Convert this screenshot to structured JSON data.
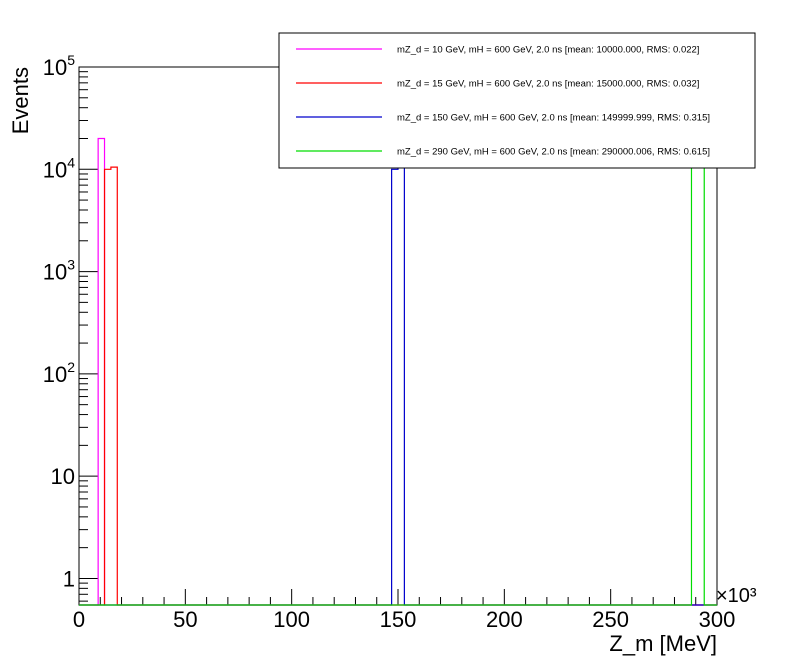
{
  "chart_data": {
    "type": "histogram",
    "xlabel": "Z_m [MeV]",
    "ylabel": "Events",
    "x_multiplier": "×10³",
    "xlim": [
      0,
      300
    ],
    "ylim": [
      0.55,
      100000
    ],
    "y_scale": "log",
    "x_ticks": [
      "0",
      "50",
      "100",
      "150",
      "200",
      "250",
      "300"
    ],
    "y_ticks": [
      {
        "value": 1,
        "base": "1",
        "exp": ""
      },
      {
        "value": 10,
        "base": "10",
        "exp": ""
      },
      {
        "value": 100,
        "base": "10",
        "exp": "2"
      },
      {
        "value": 1000,
        "base": "10",
        "exp": "3"
      },
      {
        "value": 10000,
        "base": "10",
        "exp": "4"
      },
      {
        "value": 100000,
        "base": "10",
        "exp": "5"
      }
    ],
    "legend_position": "top-right",
    "series": [
      {
        "name": "mZ_d = 10 GeV, mH = 600 GeV, 2.0 ns [mean: 10000.000, RMS: 0.022]",
        "color": "#ff00ff",
        "bins": [
          {
            "x0": 9,
            "x1": 12,
            "y": 20000
          }
        ]
      },
      {
        "name": "mZ_d = 15 GeV, mH = 600 GeV, 2.0 ns [mean: 15000.000, RMS: 0.032]",
        "color": "#ff0000",
        "bins": [
          {
            "x0": 12,
            "x1": 15,
            "y": 10000
          },
          {
            "x0": 15,
            "x1": 18,
            "y": 10500
          }
        ]
      },
      {
        "name": "mZ_d = 150 GeV, mH = 600 GeV, 2.0 ns [mean: 149999.999, RMS: 0.315]",
        "color": "#0000cc",
        "bins": [
          {
            "x0": 147,
            "x1": 150,
            "y": 10000
          },
          {
            "x0": 150,
            "x1": 153,
            "y": 150000
          }
        ]
      },
      {
        "name": "mZ_d = 290 GeV, mH = 600 GeV, 2.0 ns [mean: 290000.006, RMS: 0.615]",
        "color": "#00dd00",
        "bins": [
          {
            "x0": 288,
            "x1": 291,
            "y": 150000
          },
          {
            "x0": 291,
            "x1": 294,
            "y": 150000
          }
        ]
      }
    ]
  }
}
